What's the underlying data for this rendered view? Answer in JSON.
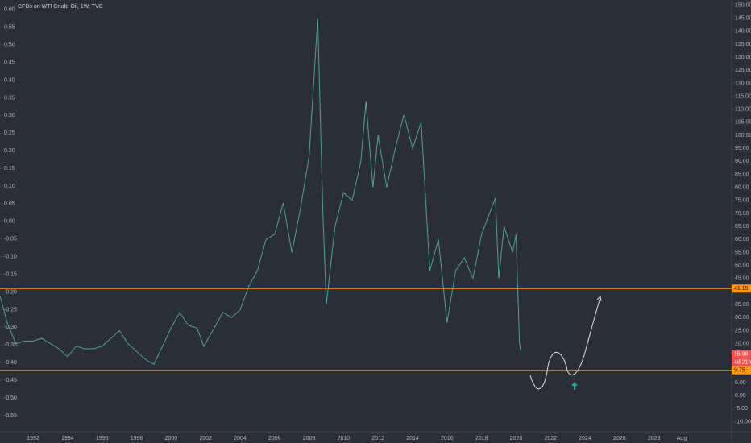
{
  "chart_data": {
    "type": "line",
    "title": "CFDs on WTI Crude Oil, 1W, TVC",
    "x": [
      1990.1,
      1990.5,
      1991.0,
      1991.5,
      1992.0,
      1992.5,
      1993.0,
      1993.5,
      1994.0,
      1994.5,
      1995.0,
      1995.5,
      1996.0,
      1996.5,
      1997.0,
      1997.5,
      1998.0,
      1998.5,
      1999.0,
      1999.5,
      2000.0,
      2000.5,
      2001.0,
      2001.5,
      2001.9,
      2002.5,
      2003.0,
      2003.5,
      2004.0,
      2004.5,
      2005.0,
      2005.5,
      2006.0,
      2006.5,
      2007.0,
      2007.5,
      2008.0,
      2008.5,
      2008.8,
      2009.0,
      2009.5,
      2010.0,
      2010.5,
      2011.0,
      2011.3,
      2011.7,
      2012.0,
      2012.5,
      2013.0,
      2013.5,
      2014.0,
      2014.5,
      2015.0,
      2015.5,
      2016.0,
      2016.5,
      2017.0,
      2017.5,
      2018.0,
      2018.8,
      2019.0,
      2019.3,
      2019.8,
      2020.0,
      2020.2,
      2020.3
    ],
    "values": [
      38,
      28,
      20,
      21,
      21,
      22,
      20,
      18,
      15,
      19,
      18,
      18,
      19,
      22,
      25,
      20,
      17,
      14,
      12,
      19,
      26,
      32,
      27,
      26,
      19,
      26,
      32,
      30,
      33,
      42,
      48,
      60,
      62,
      74,
      55,
      72,
      92,
      145,
      70,
      35,
      65,
      78,
      75,
      90,
      113,
      80,
      100,
      80,
      95,
      108,
      95,
      105,
      48,
      60,
      28,
      48,
      53,
      45,
      62,
      76,
      45,
      65,
      55,
      62,
      20,
      15.96
    ],
    "color": "#4fa39b",
    "xlim": [
      1990.08,
      2032.5
    ],
    "xticks": [
      1992,
      1994,
      1996,
      1998,
      2000,
      2002,
      2004,
      2006,
      2008,
      2010,
      2012,
      2014,
      2016,
      2018,
      2020,
      2022,
      2024,
      2026,
      2028,
      {
        "value": 2029.6,
        "label": "Aug"
      }
    ],
    "ylim": [
      -12,
      152
    ],
    "yticks": [
      {
        "value": 150,
        "label": "150.00"
      },
      {
        "value": 145,
        "label": "145.00"
      },
      {
        "value": 140,
        "label": "140.00"
      },
      {
        "value": 135,
        "label": "135.00"
      },
      {
        "value": 130,
        "label": "130.00"
      },
      {
        "value": 125,
        "label": "125.00"
      },
      {
        "value": 120,
        "label": "120.00"
      },
      {
        "value": 115,
        "label": "115.00"
      },
      {
        "value": 110,
        "label": "110.00"
      },
      {
        "value": 105,
        "label": "105.00"
      },
      {
        "value": 100,
        "label": "100.00"
      },
      {
        "value": 95,
        "label": "95.00"
      },
      {
        "value": 90,
        "label": "90.00"
      },
      {
        "value": 85,
        "label": "85.00"
      },
      {
        "value": 80,
        "label": "80.00"
      },
      {
        "value": 75,
        "label": "75.00"
      },
      {
        "value": 70,
        "label": "70.00"
      },
      {
        "value": 65,
        "label": "65.00"
      },
      {
        "value": 60,
        "label": "60.00"
      },
      {
        "value": 55,
        "label": "55.00"
      },
      {
        "value": 50,
        "label": "50.00"
      },
      {
        "value": 45,
        "label": "45.00"
      },
      {
        "value": 35,
        "label": "35.00"
      },
      {
        "value": 30,
        "label": "30.00"
      },
      {
        "value": 25,
        "label": "25.00"
      },
      {
        "value": 20,
        "label": "20.00"
      },
      {
        "value": 10,
        "label": "10.00"
      },
      {
        "value": 5,
        "label": "5.00"
      },
      {
        "value": 0,
        "label": "0.00"
      },
      {
        "value": -5,
        "label": "-5.00"
      },
      {
        "value": -10,
        "label": "-10.00"
      }
    ],
    "y2lim": [
      -0.582,
      0.627
    ],
    "y2ticks": [
      {
        "value": 0.6,
        "label": "0.60"
      },
      {
        "value": 0.55,
        "label": "0.55"
      },
      {
        "value": 0.5,
        "label": "0.50"
      },
      {
        "value": 0.45,
        "label": "0.45"
      },
      {
        "value": 0.4,
        "label": "0.40"
      },
      {
        "value": 0.35,
        "label": "0.35"
      },
      {
        "value": 0.3,
        "label": "0.30"
      },
      {
        "value": 0.25,
        "label": "0.25"
      },
      {
        "value": 0.2,
        "label": "0.20"
      },
      {
        "value": 0.15,
        "label": "0.15"
      },
      {
        "value": 0.1,
        "label": "0.10"
      },
      {
        "value": 0.05,
        "label": "0.05"
      },
      {
        "value": 0,
        "label": "0.00"
      },
      {
        "value": -0.05,
        "label": "-0.05"
      },
      {
        "value": -0.1,
        "label": "-0.10"
      },
      {
        "value": -0.15,
        "label": "-0.15"
      },
      {
        "value": -0.2,
        "label": "-0.20"
      },
      {
        "value": -0.25,
        "label": "-0.25"
      },
      {
        "value": -0.3,
        "label": "-0.30"
      },
      {
        "value": -0.35,
        "label": "-0.35"
      },
      {
        "value": -0.4,
        "label": "-0.40"
      },
      {
        "value": -0.45,
        "label": "-0.45"
      },
      {
        "value": -0.5,
        "label": "-0.50"
      },
      {
        "value": -0.55,
        "label": "-0.55"
      }
    ],
    "hlines": [
      {
        "value": 41.15,
        "label": "41.15",
        "color": "#ff9800"
      },
      {
        "value": 9.75,
        "label": "9.75",
        "color": "#ff9800"
      }
    ],
    "last_price": {
      "value": 15.96,
      "label": "15.96",
      "countdown": "4d 21h",
      "color": "#ef5350"
    }
  }
}
